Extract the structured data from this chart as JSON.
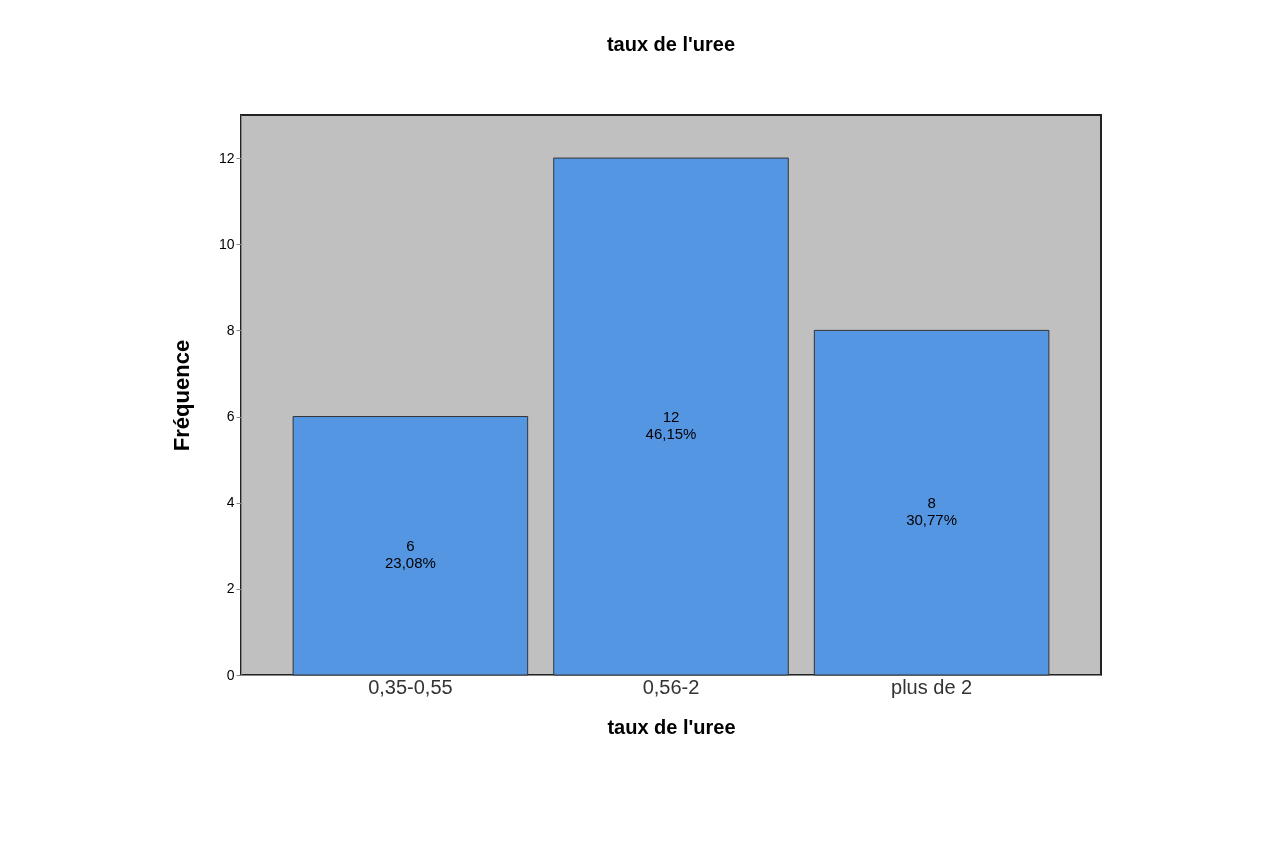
{
  "chart_data": {
    "type": "bar",
    "title": "taux de l'uree",
    "xlabel": "taux de l'uree",
    "ylabel": "Fréquence",
    "categories": [
      "0,35-0,55",
      "0,56-2",
      "plus de 2"
    ],
    "values": [
      6,
      12,
      8
    ],
    "value_labels": [
      "6\n23,08%",
      "12\n46,15%",
      "8\n30,77%"
    ],
    "color": "#5596e3",
    "ylim": [
      0,
      13
    ],
    "yticks": [
      0,
      2,
      4,
      6,
      8,
      10,
      12
    ],
    "grid": false
  }
}
